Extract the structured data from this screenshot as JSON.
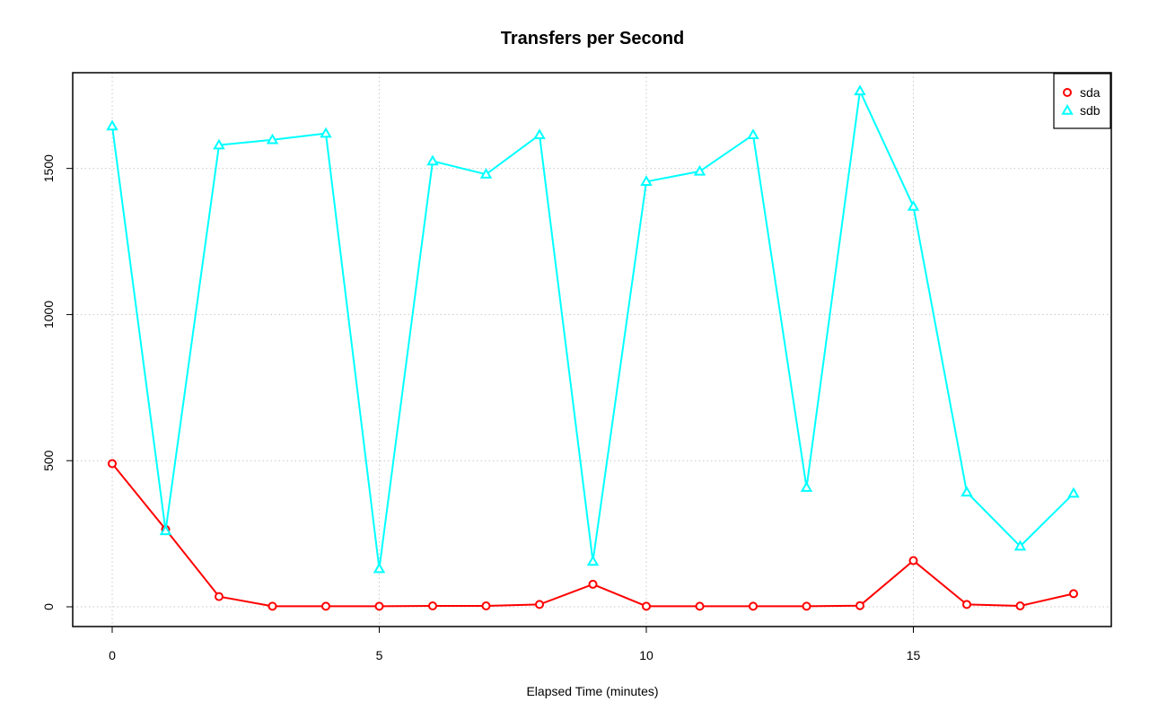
{
  "chart_data": {
    "type": "line",
    "title": "Transfers per Second",
    "xlabel": "Elapsed Time (minutes)",
    "ylabel": "",
    "xlim": [
      0,
      18
    ],
    "ylim": [
      0,
      1760
    ],
    "x_ticks": [
      0,
      5,
      10,
      15
    ],
    "y_ticks": [
      0,
      500,
      1000,
      1500
    ],
    "grid": true,
    "legend_position": "top-right",
    "x": [
      0,
      1,
      2,
      3,
      4,
      5,
      6,
      7,
      8,
      9,
      10,
      11,
      12,
      13,
      14,
      15,
      16,
      17,
      18
    ],
    "series": [
      {
        "name": "sda",
        "color": "#ff0000",
        "marker": "circle",
        "values": [
          490,
          265,
          35,
          2,
          2,
          2,
          3,
          3,
          8,
          77,
          2,
          2,
          2,
          2,
          4,
          158,
          8,
          3,
          45
        ]
      },
      {
        "name": "sdb",
        "color": "#00ffff",
        "marker": "triangle",
        "values": [
          1645,
          260,
          1580,
          1598,
          1620,
          130,
          1525,
          1480,
          1615,
          155,
          1455,
          1490,
          1615,
          408,
          1765,
          1370,
          392,
          207,
          388
        ]
      }
    ]
  }
}
